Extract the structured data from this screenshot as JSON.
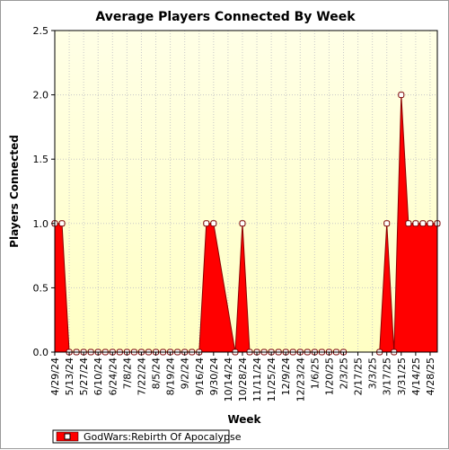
{
  "chart_data": {
    "type": "area",
    "title": "Average Players Connected By Week",
    "xlabel": "Week",
    "ylabel": "Players Connected",
    "ylim": [
      0,
      2.5
    ],
    "yticks": [
      "0.0",
      "0.5",
      "1.0",
      "1.5",
      "2.0",
      "2.5"
    ],
    "x_tick_labels": [
      "4/29/24",
      "5/13/24",
      "5/27/24",
      "6/10/24",
      "6/24/24",
      "7/8/24",
      "7/22/24",
      "8/5/24",
      "8/19/24",
      "9/2/24",
      "9/16/24",
      "9/30/24",
      "10/14/24",
      "10/28/24",
      "11/11/24",
      "11/25/24",
      "12/9/24",
      "12/23/24",
      "1/6/25",
      "1/20/25",
      "2/3/25",
      "2/17/25",
      "3/3/25",
      "3/17/25",
      "3/31/25",
      "4/14/25",
      "4/28/25"
    ],
    "legend_position": "bottom-left",
    "series": [
      {
        "name": "GodWars:Rebirth Of Apocalypse",
        "color": "#ff0000",
        "points": [
          {
            "x": "4/29/24",
            "y": 1
          },
          {
            "x": "5/6/24",
            "y": 1
          },
          {
            "x": "5/13/24",
            "y": 0
          },
          {
            "x": "5/20/24",
            "y": 0
          },
          {
            "x": "5/27/24",
            "y": 0
          },
          {
            "x": "6/3/24",
            "y": 0
          },
          {
            "x": "6/10/24",
            "y": 0
          },
          {
            "x": "6/17/24",
            "y": 0
          },
          {
            "x": "6/24/24",
            "y": 0
          },
          {
            "x": "7/1/24",
            "y": 0
          },
          {
            "x": "7/8/24",
            "y": 0
          },
          {
            "x": "7/15/24",
            "y": 0
          },
          {
            "x": "7/22/24",
            "y": 0
          },
          {
            "x": "7/29/24",
            "y": 0
          },
          {
            "x": "8/5/24",
            "y": 0
          },
          {
            "x": "8/12/24",
            "y": 0
          },
          {
            "x": "8/19/24",
            "y": 0
          },
          {
            "x": "8/26/24",
            "y": 0
          },
          {
            "x": "9/2/24",
            "y": 0
          },
          {
            "x": "9/9/24",
            "y": 0
          },
          {
            "x": "9/16/24",
            "y": 0
          },
          {
            "x": "9/23/24",
            "y": 1
          },
          {
            "x": "9/30/24",
            "y": 1
          },
          {
            "x": "10/21/24",
            "y": 0
          },
          {
            "x": "10/28/24",
            "y": 1
          },
          {
            "x": "11/4/24",
            "y": 0
          },
          {
            "x": "11/11/24",
            "y": 0
          },
          {
            "x": "11/18/24",
            "y": 0
          },
          {
            "x": "11/25/24",
            "y": 0
          },
          {
            "x": "12/2/24",
            "y": 0
          },
          {
            "x": "12/9/24",
            "y": 0
          },
          {
            "x": "12/16/24",
            "y": 0
          },
          {
            "x": "12/23/24",
            "y": 0
          },
          {
            "x": "12/30/24",
            "y": 0
          },
          {
            "x": "1/6/25",
            "y": 0
          },
          {
            "x": "1/13/25",
            "y": 0
          },
          {
            "x": "1/20/25",
            "y": 0
          },
          {
            "x": "1/27/25",
            "y": 0
          },
          {
            "x": "2/3/25",
            "y": 0
          },
          {
            "x": "3/10/25",
            "y": 0
          },
          {
            "x": "3/17/25",
            "y": 1
          },
          {
            "x": "3/24/25",
            "y": 0
          },
          {
            "x": "3/31/25",
            "y": 2
          },
          {
            "x": "4/7/25",
            "y": 1
          },
          {
            "x": "4/14/25",
            "y": 1
          },
          {
            "x": "4/21/25",
            "y": 1
          },
          {
            "x": "4/28/25",
            "y": 1
          },
          {
            "x": "5/5/25",
            "y": 1
          }
        ]
      }
    ],
    "colors": {
      "plot_top": "#ffffe6",
      "plot_bottom": "#ffffc4",
      "grid": "#c8c8c8",
      "axis": "#000000"
    }
  }
}
